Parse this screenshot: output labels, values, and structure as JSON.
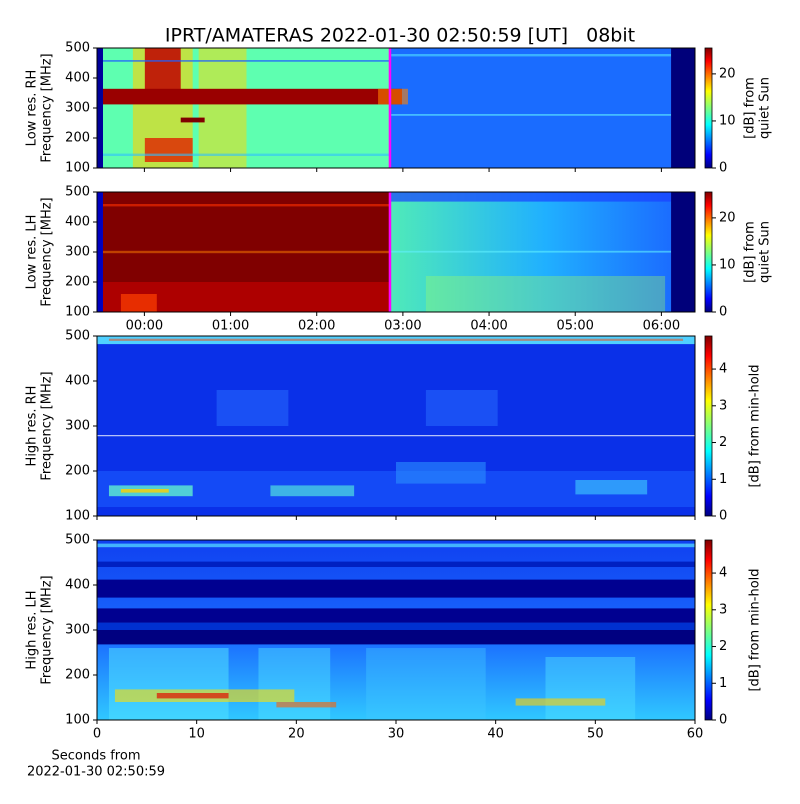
{
  "chart_data": [
    {
      "type": "heatmap",
      "title": "IPRT/AMATERAS 2022-01-30 02:50:59 [UT]   08bit",
      "ylabel": [
        "Low res. RH",
        "Frequency [MHz]"
      ],
      "ylim": [
        100,
        500
      ],
      "yticks": [
        100,
        200,
        300,
        400,
        500
      ],
      "marker": {
        "value": 2.85,
        "color": "#ff00ff"
      },
      "colorbar": {
        "label": [
          "[dB] from",
          "quiet Sun"
        ],
        "lim": [
          0,
          25.5
        ],
        "ticks": [
          0,
          10,
          20
        ]
      }
    },
    {
      "type": "heatmap",
      "ylabel": [
        "Low res. LH",
        "Frequency [MHz]"
      ],
      "ylim": [
        100,
        500
      ],
      "yticks": [
        100,
        200,
        300,
        400,
        500
      ],
      "marker": {
        "value": 2.85,
        "color": "#ff00ff"
      },
      "xlim": [
        -0.55,
        6.39
      ],
      "xticks": [
        {
          "value": 0,
          "label": "00:00"
        },
        {
          "value": 1,
          "label": "01:00"
        },
        {
          "value": 2,
          "label": "02:00"
        },
        {
          "value": 3,
          "label": "03:00"
        },
        {
          "value": 4,
          "label": "04:00"
        },
        {
          "value": 5,
          "label": "05:00"
        },
        {
          "value": 6,
          "label": "06:00"
        }
      ],
      "colorbar": {
        "label": [
          "[dB] from",
          "quiet Sun"
        ],
        "lim": [
          0,
          25.5
        ],
        "ticks": [
          0,
          10,
          20
        ]
      }
    },
    {
      "type": "heatmap",
      "ylabel": [
        "High res. RH",
        "Frequency [MHz]"
      ],
      "ylim": [
        100,
        500
      ],
      "yticks": [
        100,
        200,
        300,
        400,
        500
      ],
      "colorbar": {
        "label": [
          "[dB] from min-hold"
        ],
        "lim": [
          0,
          4.9
        ],
        "ticks": [
          0,
          1,
          2,
          3,
          4
        ]
      }
    },
    {
      "type": "heatmap",
      "ylabel": [
        "High res. LH",
        "Frequency [MHz]"
      ],
      "ylim": [
        100,
        500
      ],
      "yticks": [
        100,
        200,
        300,
        400,
        500
      ],
      "xlim": [
        0,
        60
      ],
      "xticks": [
        0,
        10,
        20,
        30,
        40,
        50,
        60
      ],
      "xlabel": [
        "Seconds from",
        "2022-01-30 02:50:59"
      ],
      "colorbar": {
        "label": [
          "[dB] from min-hold"
        ],
        "lim": [
          0,
          4.9
        ],
        "ticks": [
          0,
          1,
          2,
          3,
          4
        ]
      }
    }
  ]
}
